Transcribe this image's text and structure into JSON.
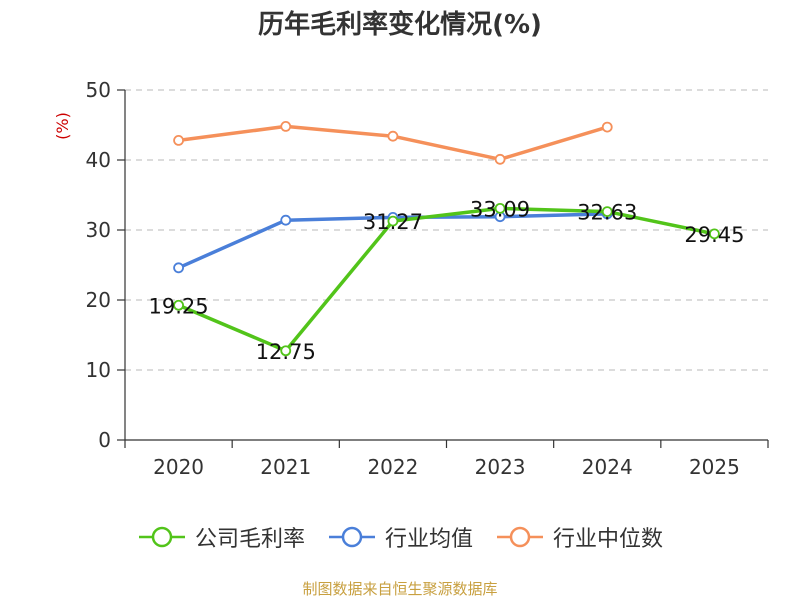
{
  "chart_data": {
    "type": "line",
    "title": "历年毛利率变化情况(%)",
    "ylabel": "(%)",
    "categories": [
      "2020",
      "2021",
      "2022",
      "2023",
      "2024",
      "2025"
    ],
    "ylim": [
      0,
      50
    ],
    "yticks": [
      0,
      10,
      20,
      30,
      40,
      50
    ],
    "grid": true,
    "legend_position": "bottom",
    "series": [
      {
        "name": "公司毛利率",
        "color": "#52c41a",
        "values": [
          19.25,
          12.75,
          31.27,
          33.09,
          32.63,
          29.45
        ],
        "labels": [
          "19.25",
          "12.75",
          "31.27",
          "33.09",
          "32.63",
          "29.45"
        ]
      },
      {
        "name": "行业均值",
        "color": "#4a7fd9",
        "values": [
          24.6,
          31.4,
          31.8,
          31.9,
          32.3,
          null
        ]
      },
      {
        "name": "行业中位数",
        "color": "#f5905a",
        "values": [
          42.8,
          44.8,
          43.4,
          40.1,
          44.7,
          null
        ]
      }
    ]
  },
  "source": "制图数据来自恒生聚源数据库"
}
